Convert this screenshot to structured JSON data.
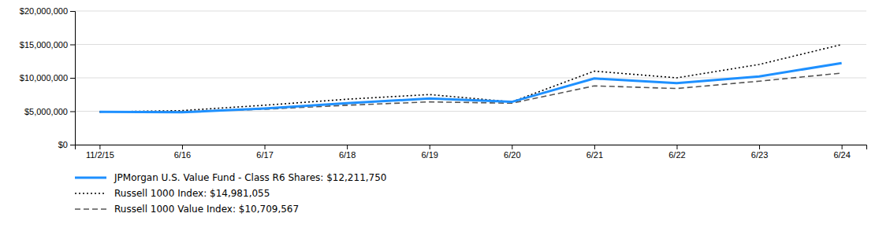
{
  "chart_data": {
    "type": "line",
    "categories": [
      "11/2/15",
      "6/16",
      "6/17",
      "6/18",
      "6/19",
      "6/20",
      "6/21",
      "6/22",
      "6/23",
      "6/24"
    ],
    "series": [
      {
        "name": "JPMorgan U.S. Value Fund - Class R6 Shares: $12,211,750",
        "color": "#1E90FF",
        "line_style": "solid",
        "values": [
          4900000,
          4850000,
          5400000,
          6200000,
          6900000,
          6400000,
          9900000,
          9200000,
          10200000,
          12211750
        ]
      },
      {
        "name": "Russell 1000 Index: $14,981,055",
        "color": "#000000",
        "line_style": "dotted",
        "values": [
          4900000,
          5100000,
          5900000,
          6800000,
          7500000,
          6400000,
          11000000,
          10000000,
          12000000,
          14981055
        ]
      },
      {
        "name": "Russell 1000 Value Index: $10,709,567",
        "color": "#555555",
        "line_style": "dashed",
        "values": [
          4900000,
          4950000,
          5300000,
          5900000,
          6400000,
          6200000,
          8800000,
          8400000,
          9500000,
          10709567
        ]
      }
    ],
    "ylim": [
      0,
      20000000
    ],
    "yticks": [
      {
        "value": 0,
        "label": "$0"
      },
      {
        "value": 5000000,
        "label": "$5,000,000"
      },
      {
        "value": 10000000,
        "label": "$10,000,000"
      },
      {
        "value": 15000000,
        "label": "$15,000,000"
      },
      {
        "value": 20000000,
        "label": "$20,000,000"
      }
    ],
    "grid": true,
    "legend": "bottom-left"
  }
}
